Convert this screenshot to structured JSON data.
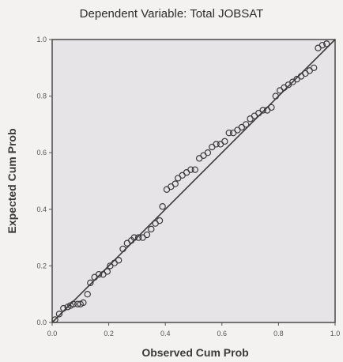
{
  "chart_data": {
    "type": "scatter",
    "title": "Dependent Variable: Total JOBSAT",
    "xlabel": "Observed Cum Prob",
    "ylabel": "Expected Cum Prob",
    "xlim": [
      0,
      1
    ],
    "ylim": [
      0,
      1
    ],
    "xticks": [
      "0.0",
      "0.2",
      "0.4",
      "0.6",
      "0.8",
      "1.0"
    ],
    "yticks": [
      "0.0",
      "0.2",
      "0.4",
      "0.6",
      "0.8",
      "1.0"
    ],
    "grid": false,
    "reference_line": [
      [
        0,
        0
      ],
      [
        1,
        1
      ]
    ],
    "points": [
      [
        0.01,
        0.01
      ],
      [
        0.025,
        0.03
      ],
      [
        0.04,
        0.05
      ],
      [
        0.055,
        0.055
      ],
      [
        0.065,
        0.06
      ],
      [
        0.075,
        0.065
      ],
      [
        0.09,
        0.065
      ],
      [
        0.1,
        0.065
      ],
      [
        0.11,
        0.07
      ],
      [
        0.125,
        0.1
      ],
      [
        0.135,
        0.14
      ],
      [
        0.15,
        0.16
      ],
      [
        0.165,
        0.17
      ],
      [
        0.18,
        0.17
      ],
      [
        0.195,
        0.18
      ],
      [
        0.205,
        0.2
      ],
      [
        0.22,
        0.21
      ],
      [
        0.235,
        0.22
      ],
      [
        0.25,
        0.26
      ],
      [
        0.265,
        0.28
      ],
      [
        0.28,
        0.29
      ],
      [
        0.29,
        0.3
      ],
      [
        0.305,
        0.3
      ],
      [
        0.32,
        0.3
      ],
      [
        0.335,
        0.31
      ],
      [
        0.35,
        0.33
      ],
      [
        0.365,
        0.35
      ],
      [
        0.38,
        0.36
      ],
      [
        0.39,
        0.41
      ],
      [
        0.405,
        0.47
      ],
      [
        0.42,
        0.48
      ],
      [
        0.435,
        0.49
      ],
      [
        0.445,
        0.51
      ],
      [
        0.46,
        0.52
      ],
      [
        0.475,
        0.53
      ],
      [
        0.49,
        0.54
      ],
      [
        0.505,
        0.54
      ],
      [
        0.52,
        0.58
      ],
      [
        0.535,
        0.59
      ],
      [
        0.55,
        0.6
      ],
      [
        0.565,
        0.62
      ],
      [
        0.58,
        0.63
      ],
      [
        0.595,
        0.63
      ],
      [
        0.61,
        0.64
      ],
      [
        0.625,
        0.67
      ],
      [
        0.64,
        0.67
      ],
      [
        0.655,
        0.68
      ],
      [
        0.67,
        0.69
      ],
      [
        0.685,
        0.7
      ],
      [
        0.7,
        0.72
      ],
      [
        0.715,
        0.73
      ],
      [
        0.73,
        0.74
      ],
      [
        0.745,
        0.75
      ],
      [
        0.76,
        0.75
      ],
      [
        0.775,
        0.76
      ],
      [
        0.79,
        0.8
      ],
      [
        0.805,
        0.82
      ],
      [
        0.82,
        0.83
      ],
      [
        0.835,
        0.84
      ],
      [
        0.85,
        0.85
      ],
      [
        0.865,
        0.86
      ],
      [
        0.88,
        0.87
      ],
      [
        0.895,
        0.88
      ],
      [
        0.91,
        0.89
      ],
      [
        0.925,
        0.9
      ],
      [
        0.94,
        0.97
      ],
      [
        0.955,
        0.98
      ],
      [
        0.97,
        0.985
      ]
    ]
  }
}
